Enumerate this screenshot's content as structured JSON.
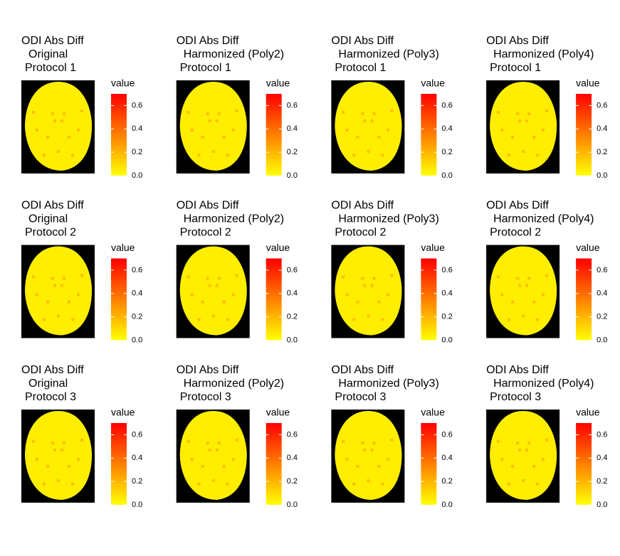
{
  "chart_data": [
    {
      "type": "heatmap",
      "title": [
        "ODI Abs Diff",
        "Original",
        "Protocol 1"
      ],
      "legend_title": "value",
      "zlim": [
        0,
        0.7
      ],
      "zticks": [
        {
          "value": 0,
          "label": "0.0"
        },
        {
          "value": 0.2,
          "label": "0.2"
        },
        {
          "value": 0.4,
          "label": "0.4"
        },
        {
          "value": 0.6,
          "label": "0.6"
        }
      ],
      "colors": [
        "#ffff00",
        "#ff0000"
      ]
    },
    {
      "type": "heatmap",
      "title": [
        "ODI Abs Diff",
        "Harmonized (Poly2)",
        "Protocol 1"
      ],
      "legend_title": "value",
      "zlim": [
        0,
        0.7
      ],
      "zticks": [
        {
          "value": 0,
          "label": "0.0"
        },
        {
          "value": 0.2,
          "label": "0.2"
        },
        {
          "value": 0.4,
          "label": "0.4"
        },
        {
          "value": 0.6,
          "label": "0.6"
        }
      ],
      "colors": [
        "#ffff00",
        "#ff0000"
      ]
    },
    {
      "type": "heatmap",
      "title": [
        "ODI Abs Diff",
        "Harmonized (Poly3)",
        "Protocol 1"
      ],
      "legend_title": "value",
      "zlim": [
        0,
        0.7
      ],
      "zticks": [
        {
          "value": 0,
          "label": "0.0"
        },
        {
          "value": 0.2,
          "label": "0.2"
        },
        {
          "value": 0.4,
          "label": "0.4"
        },
        {
          "value": 0.6,
          "label": "0.6"
        }
      ],
      "colors": [
        "#ffff00",
        "#ff0000"
      ]
    },
    {
      "type": "heatmap",
      "title": [
        "ODI Abs Diff",
        "Harmonized (Poly4)",
        "Protocol 1"
      ],
      "legend_title": "value",
      "zlim": [
        0,
        0.7
      ],
      "zticks": [
        {
          "value": 0,
          "label": "0.0"
        },
        {
          "value": 0.2,
          "label": "0.2"
        },
        {
          "value": 0.4,
          "label": "0.4"
        },
        {
          "value": 0.6,
          "label": "0.6"
        }
      ],
      "colors": [
        "#ffff00",
        "#ff0000"
      ]
    },
    {
      "type": "heatmap",
      "title": [
        "ODI Abs Diff",
        "Original",
        "Protocol 2"
      ],
      "legend_title": "value",
      "zlim": [
        0,
        0.7
      ],
      "zticks": [
        {
          "value": 0,
          "label": "0.0"
        },
        {
          "value": 0.2,
          "label": "0.2"
        },
        {
          "value": 0.4,
          "label": "0.4"
        },
        {
          "value": 0.6,
          "label": "0.6"
        }
      ],
      "colors": [
        "#ffff00",
        "#ff0000"
      ]
    },
    {
      "type": "heatmap",
      "title": [
        "ODI Abs Diff",
        "Harmonized (Poly2)",
        "Protocol 2"
      ],
      "legend_title": "value",
      "zlim": [
        0,
        0.7
      ],
      "zticks": [
        {
          "value": 0,
          "label": "0.0"
        },
        {
          "value": 0.2,
          "label": "0.2"
        },
        {
          "value": 0.4,
          "label": "0.4"
        },
        {
          "value": 0.6,
          "label": "0.6"
        }
      ],
      "colors": [
        "#ffff00",
        "#ff0000"
      ]
    },
    {
      "type": "heatmap",
      "title": [
        "ODI Abs Diff",
        "Harmonized (Poly3)",
        "Protocol 2"
      ],
      "legend_title": "value",
      "zlim": [
        0,
        0.7
      ],
      "zticks": [
        {
          "value": 0,
          "label": "0.0"
        },
        {
          "value": 0.2,
          "label": "0.2"
        },
        {
          "value": 0.4,
          "label": "0.4"
        },
        {
          "value": 0.6,
          "label": "0.6"
        }
      ],
      "colors": [
        "#ffff00",
        "#ff0000"
      ]
    },
    {
      "type": "heatmap",
      "title": [
        "ODI Abs Diff",
        "Harmonized (Poly4)",
        "Protocol 2"
      ],
      "legend_title": "value",
      "zlim": [
        0,
        0.7
      ],
      "zticks": [
        {
          "value": 0,
          "label": "0.0"
        },
        {
          "value": 0.2,
          "label": "0.2"
        },
        {
          "value": 0.4,
          "label": "0.4"
        },
        {
          "value": 0.6,
          "label": "0.6"
        }
      ],
      "colors": [
        "#ffff00",
        "#ff0000"
      ]
    },
    {
      "type": "heatmap",
      "title": [
        "ODI Abs Diff",
        "Original",
        "Protocol 3"
      ],
      "legend_title": "value",
      "zlim": [
        0,
        0.7
      ],
      "zticks": [
        {
          "value": 0,
          "label": "0.0"
        },
        {
          "value": 0.2,
          "label": "0.2"
        },
        {
          "value": 0.4,
          "label": "0.4"
        },
        {
          "value": 0.6,
          "label": "0.6"
        }
      ],
      "colors": [
        "#ffff00",
        "#ff0000"
      ]
    },
    {
      "type": "heatmap",
      "title": [
        "ODI Abs Diff",
        "Harmonized (Poly2)",
        "Protocol 3"
      ],
      "legend_title": "value",
      "zlim": [
        0,
        0.7
      ],
      "zticks": [
        {
          "value": 0,
          "label": "0.0"
        },
        {
          "value": 0.2,
          "label": "0.2"
        },
        {
          "value": 0.4,
          "label": "0.4"
        },
        {
          "value": 0.6,
          "label": "0.6"
        }
      ],
      "colors": [
        "#ffff00",
        "#ff0000"
      ]
    },
    {
      "type": "heatmap",
      "title": [
        "ODI Abs Diff",
        "Harmonized (Poly3)",
        "Protocol 3"
      ],
      "legend_title": "value",
      "zlim": [
        0,
        0.7
      ],
      "zticks": [
        {
          "value": 0,
          "label": "0.0"
        },
        {
          "value": 0.2,
          "label": "0.2"
        },
        {
          "value": 0.4,
          "label": "0.4"
        },
        {
          "value": 0.6,
          "label": "0.6"
        }
      ],
      "colors": [
        "#ffff00",
        "#ff0000"
      ]
    },
    {
      "type": "heatmap",
      "title": [
        "ODI Abs Diff",
        "Harmonized (Poly4)",
        "Protocol 3"
      ],
      "legend_title": "value",
      "zlim": [
        0,
        0.7
      ],
      "zticks": [
        {
          "value": 0,
          "label": "0.0"
        },
        {
          "value": 0.2,
          "label": "0.2"
        },
        {
          "value": 0.4,
          "label": "0.4"
        },
        {
          "value": 0.6,
          "label": "0.6"
        }
      ],
      "colors": [
        "#ffff00",
        "#ff0000"
      ]
    }
  ]
}
